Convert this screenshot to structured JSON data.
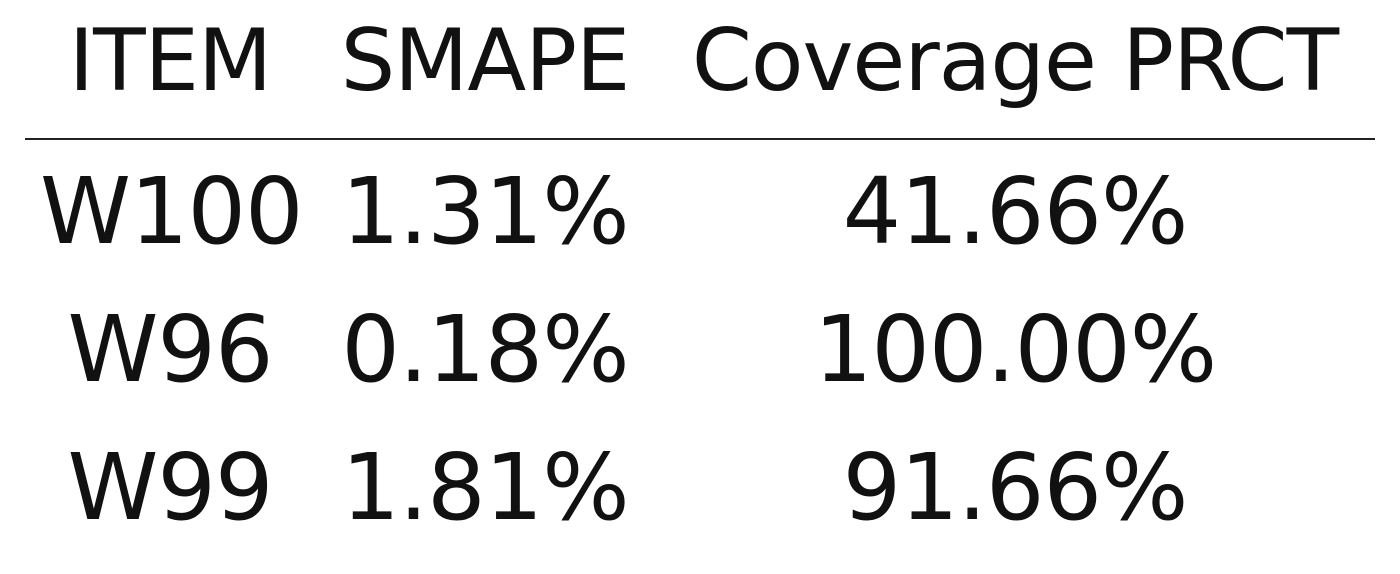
{
  "table": {
    "headers": [
      "ITEM",
      "SMAPE",
      "Coverage PRCT"
    ],
    "rows": [
      [
        "W100",
        "1.31%",
        "41.66%"
      ],
      [
        "W96",
        "0.18%",
        "100.00%"
      ],
      [
        "W99",
        "1.81%",
        "91.66%"
      ]
    ]
  }
}
